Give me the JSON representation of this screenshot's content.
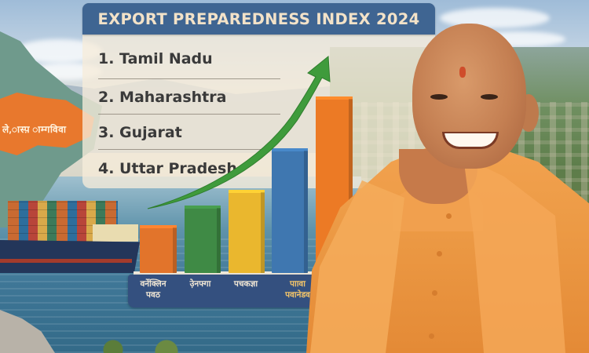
{
  "title_banner": {
    "text": "EXPORT PREPAREDNESS INDEX 2024",
    "background_color": "#3f6592",
    "text_color": "#f3e2c8"
  },
  "ranking_list": {
    "items": [
      {
        "rank": 1,
        "label": "1. Tamil Nadu"
      },
      {
        "rank": 2,
        "label": "2. Maharashtra"
      },
      {
        "rank": 3,
        "label": "3. Gujarat"
      },
      {
        "rank": 4,
        "label": "4. Uttar Pradesh"
      }
    ]
  },
  "map": {
    "state_label": "ले,ास्प़ ाम्गविवा",
    "state_color": "#e8782d"
  },
  "chart_data": {
    "type": "bar",
    "title": "",
    "xlabel": "",
    "ylabel": "",
    "grid": false,
    "legend": "none",
    "categories": [
      "वर्नेक्लिन पवठ",
      "उ़ेनफ्गा",
      "पचकज्ञा",
      "पाावा पवानेडव",
      ""
    ],
    "values": [
      58,
      83,
      103,
      156,
      222
    ],
    "colors": [
      "#e2742b",
      "#3f8a45",
      "#eab72e",
      "#3f77b0",
      "#ec7a25"
    ],
    "value_units": "relative bar height (px, unlabeled)",
    "annotations": [
      "green upward trend arrow rising from left bars to top right"
    ]
  },
  "bar_labels": [
    {
      "text": "वर्नेक्लिन\nपवठ",
      "highlight": false
    },
    {
      "text": "उ़ेनफ्गा",
      "highlight": false
    },
    {
      "text": "पचकज्ञा",
      "highlight": false
    },
    {
      "text": "पाावा\nपवानेडव",
      "highlight": true
    }
  ],
  "colors": {
    "label_panel": "#34507f",
    "label_text": "#f1e7d5",
    "label_highlight": "#f2c46a",
    "arrow": "#3f9b3c",
    "robe": "#ec9a45"
  },
  "scene": {
    "background": "cargo ship at sea, hills and town",
    "person": "smiling man in saffron robe"
  }
}
